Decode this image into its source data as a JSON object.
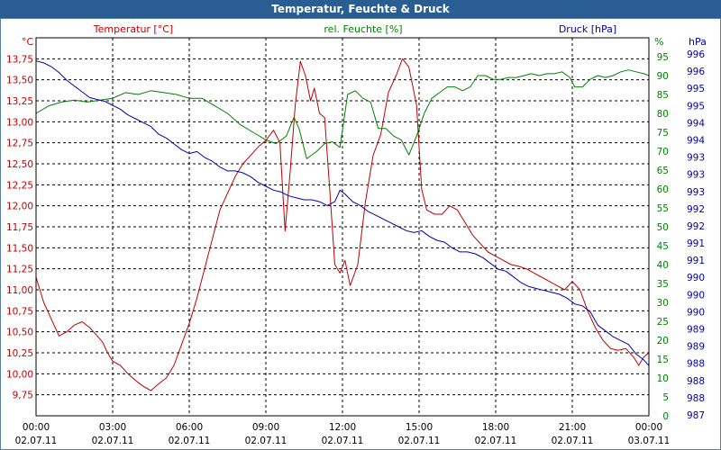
{
  "window": {
    "title": "Temperatur, Feuchte & Druck"
  },
  "chart_data": {
    "type": "line",
    "title": "Temperatur, Feuchte & Druck",
    "colors": {
      "temperature": "#c00000",
      "humidity": "#008000",
      "pressure": "#0000b0",
      "grid": "#000000"
    },
    "x_ticks": [
      {
        "time": "00:00",
        "date": "02.07.11"
      },
      {
        "time": "03:00",
        "date": "02.07.11"
      },
      {
        "time": "06:00",
        "date": "02.07.11"
      },
      {
        "time": "09:00",
        "date": "02.07.11"
      },
      {
        "time": "12:00",
        "date": "02.07.11"
      },
      {
        "time": "15:00",
        "date": "02.07.11"
      },
      {
        "time": "18:00",
        "date": "02.07.11"
      },
      {
        "time": "21:00",
        "date": "02.07.11"
      },
      {
        "time": "00:00",
        "date": "03.07.11"
      }
    ],
    "x_range_hours": [
      0,
      24
    ],
    "axes": {
      "temperature": {
        "unit": "°C",
        "label": "Temperatur [°C]",
        "ylim": [
          9.5,
          14.0
        ],
        "ticks": [
          "9,75",
          "10,00",
          "10,25",
          "10,50",
          "10,75",
          "11,00",
          "11,25",
          "11,50",
          "11,75",
          "12,00",
          "12,25",
          "12,50",
          "12,75",
          "13,00",
          "13,25",
          "13,50",
          "13,75"
        ]
      },
      "humidity": {
        "unit": "%",
        "label": "rel. Feuchte [%]",
        "ylim": [
          0,
          100
        ],
        "ticks": [
          "0",
          "5",
          "10",
          "15",
          "20",
          "25",
          "30",
          "35",
          "40",
          "45",
          "50",
          "55",
          "60",
          "65",
          "70",
          "75",
          "80",
          "85",
          "90",
          "95"
        ]
      },
      "pressure": {
        "unit": "hPa",
        "label": "Druck [hPa]",
        "ylim": [
          987,
          996.8
        ],
        "ticks": [
          "987",
          "988",
          "988",
          "988",
          "989",
          "989",
          "990",
          "990",
          "990",
          "991",
          "991",
          "992",
          "992",
          "993",
          "993",
          "993",
          "994",
          "994",
          "995",
          "995",
          "996",
          "996"
        ]
      }
    },
    "series": [
      {
        "name": "Temperatur",
        "axis": "temperature",
        "points": [
          [
            0,
            11.15
          ],
          [
            0.3,
            10.85
          ],
          [
            0.6,
            10.65
          ],
          [
            0.9,
            10.45
          ],
          [
            1.2,
            10.5
          ],
          [
            1.5,
            10.58
          ],
          [
            1.8,
            10.62
          ],
          [
            2.1,
            10.55
          ],
          [
            2.4,
            10.45
          ],
          [
            2.6,
            10.38
          ],
          [
            2.8,
            10.25
          ],
          [
            3.0,
            10.15
          ],
          [
            3.3,
            10.1
          ],
          [
            3.6,
            10.0
          ],
          [
            3.9,
            9.92
          ],
          [
            4.2,
            9.85
          ],
          [
            4.5,
            9.8
          ],
          [
            4.8,
            9.88
          ],
          [
            5.1,
            9.95
          ],
          [
            5.4,
            10.1
          ],
          [
            5.7,
            10.35
          ],
          [
            6.0,
            10.6
          ],
          [
            6.3,
            10.9
          ],
          [
            6.6,
            11.25
          ],
          [
            6.9,
            11.6
          ],
          [
            7.2,
            11.95
          ],
          [
            7.5,
            12.15
          ],
          [
            7.8,
            12.35
          ],
          [
            8.1,
            12.5
          ],
          [
            8.4,
            12.6
          ],
          [
            8.7,
            12.7
          ],
          [
            9.0,
            12.78
          ],
          [
            9.3,
            12.9
          ],
          [
            9.55,
            12.75
          ],
          [
            9.75,
            11.7
          ],
          [
            9.95,
            12.4
          ],
          [
            10.15,
            13.2
          ],
          [
            10.35,
            13.72
          ],
          [
            10.55,
            13.55
          ],
          [
            10.75,
            13.25
          ],
          [
            10.9,
            13.4
          ],
          [
            11.1,
            13.1
          ],
          [
            11.3,
            13.05
          ],
          [
            11.5,
            12.2
          ],
          [
            11.7,
            11.3
          ],
          [
            11.9,
            11.2
          ],
          [
            12.1,
            11.35
          ],
          [
            12.3,
            11.05
          ],
          [
            12.6,
            11.3
          ],
          [
            12.9,
            12.05
          ],
          [
            13.2,
            12.6
          ],
          [
            13.5,
            12.85
          ],
          [
            13.8,
            13.35
          ],
          [
            14.1,
            13.55
          ],
          [
            14.35,
            13.75
          ],
          [
            14.6,
            13.65
          ],
          [
            14.9,
            13.2
          ],
          [
            15.1,
            12.2
          ],
          [
            15.3,
            11.95
          ],
          [
            15.6,
            11.9
          ],
          [
            15.9,
            11.9
          ],
          [
            16.2,
            12.0
          ],
          [
            16.5,
            11.95
          ],
          [
            16.8,
            11.8
          ],
          [
            17.1,
            11.65
          ],
          [
            17.4,
            11.55
          ],
          [
            17.7,
            11.45
          ],
          [
            18.0,
            11.4
          ],
          [
            18.3,
            11.35
          ],
          [
            18.6,
            11.3
          ],
          [
            18.9,
            11.28
          ],
          [
            19.2,
            11.25
          ],
          [
            19.5,
            11.2
          ],
          [
            19.8,
            11.15
          ],
          [
            20.1,
            11.1
          ],
          [
            20.4,
            11.05
          ],
          [
            20.7,
            11.0
          ],
          [
            21.0,
            11.1
          ],
          [
            21.3,
            11.0
          ],
          [
            21.6,
            10.75
          ],
          [
            21.9,
            10.55
          ],
          [
            22.2,
            10.4
          ],
          [
            22.5,
            10.3
          ],
          [
            22.8,
            10.28
          ],
          [
            23.1,
            10.3
          ],
          [
            23.4,
            10.2
          ],
          [
            23.6,
            10.1
          ],
          [
            23.8,
            10.2
          ],
          [
            24.0,
            10.25
          ]
        ]
      },
      {
        "name": "rel. Feuchte",
        "axis": "humidity",
        "points": [
          [
            0,
            80
          ],
          [
            0.5,
            82
          ],
          [
            1,
            83
          ],
          [
            1.5,
            83.5
          ],
          [
            2,
            83
          ],
          [
            2.5,
            83.5
          ],
          [
            3,
            84
          ],
          [
            3.5,
            85.5
          ],
          [
            4,
            85
          ],
          [
            4.5,
            86
          ],
          [
            5,
            85.5
          ],
          [
            5.5,
            85
          ],
          [
            6,
            84
          ],
          [
            6.5,
            84
          ],
          [
            7,
            82
          ],
          [
            7.5,
            80
          ],
          [
            8,
            77
          ],
          [
            8.5,
            75
          ],
          [
            9,
            73
          ],
          [
            9.4,
            72
          ],
          [
            9.8,
            74
          ],
          [
            10.1,
            79
          ],
          [
            10.3,
            76
          ],
          [
            10.6,
            68
          ],
          [
            11,
            70
          ],
          [
            11.3,
            72
          ],
          [
            11.6,
            72.5
          ],
          [
            11.9,
            71
          ],
          [
            12.2,
            85
          ],
          [
            12.5,
            86
          ],
          [
            12.8,
            84
          ],
          [
            13.1,
            83
          ],
          [
            13.4,
            76
          ],
          [
            13.7,
            76
          ],
          [
            14,
            74
          ],
          [
            14.3,
            73
          ],
          [
            14.6,
            69
          ],
          [
            14.9,
            74
          ],
          [
            15.2,
            80
          ],
          [
            15.5,
            84
          ],
          [
            15.8,
            85.5
          ],
          [
            16.1,
            87
          ],
          [
            16.4,
            87
          ],
          [
            16.7,
            86
          ],
          [
            17,
            87
          ],
          [
            17.3,
            90
          ],
          [
            17.6,
            90
          ],
          [
            17.9,
            89
          ],
          [
            18.2,
            89
          ],
          [
            18.5,
            89.5
          ],
          [
            18.8,
            89.5
          ],
          [
            19.1,
            90
          ],
          [
            19.4,
            90.5
          ],
          [
            19.7,
            90
          ],
          [
            20,
            90.5
          ],
          [
            20.3,
            90.5
          ],
          [
            20.6,
            91
          ],
          [
            20.9,
            89.5
          ],
          [
            21.1,
            87
          ],
          [
            21.4,
            87
          ],
          [
            21.7,
            89
          ],
          [
            22,
            90
          ],
          [
            22.3,
            89.5
          ],
          [
            22.6,
            90
          ],
          [
            22.9,
            91
          ],
          [
            23.2,
            91.5
          ],
          [
            23.5,
            91
          ],
          [
            23.8,
            90.5
          ],
          [
            24,
            90
          ]
        ]
      },
      {
        "name": "Druck",
        "axis": "pressure",
        "points": [
          [
            0,
            996.2
          ],
          [
            0.3,
            996.15
          ],
          [
            0.6,
            996.05
          ],
          [
            0.9,
            995.9
          ],
          [
            1.2,
            995.7
          ],
          [
            1.5,
            995.55
          ],
          [
            1.8,
            995.4
          ],
          [
            2.1,
            995.25
          ],
          [
            2.4,
            995.2
          ],
          [
            2.7,
            995.15
          ],
          [
            3.0,
            995.05
          ],
          [
            3.3,
            994.95
          ],
          [
            3.6,
            994.8
          ],
          [
            3.9,
            994.7
          ],
          [
            4.2,
            994.6
          ],
          [
            4.5,
            994.5
          ],
          [
            4.8,
            994.3
          ],
          [
            5.1,
            994.2
          ],
          [
            5.4,
            994.05
          ],
          [
            5.7,
            993.9
          ],
          [
            6.0,
            993.8
          ],
          [
            6.3,
            993.85
          ],
          [
            6.6,
            993.7
          ],
          [
            6.9,
            993.6
          ],
          [
            7.2,
            993.45
          ],
          [
            7.5,
            993.35
          ],
          [
            7.8,
            993.35
          ],
          [
            8.1,
            993.3
          ],
          [
            8.4,
            993.2
          ],
          [
            8.7,
            993.05
          ],
          [
            9.0,
            992.95
          ],
          [
            9.3,
            992.85
          ],
          [
            9.6,
            992.8
          ],
          [
            9.9,
            992.7
          ],
          [
            10.2,
            992.65
          ],
          [
            10.5,
            992.6
          ],
          [
            10.8,
            992.6
          ],
          [
            11.1,
            992.55
          ],
          [
            11.4,
            992.45
          ],
          [
            11.7,
            992.55
          ],
          [
            11.9,
            992.85
          ],
          [
            12.1,
            992.75
          ],
          [
            12.4,
            992.55
          ],
          [
            12.7,
            992.45
          ],
          [
            13.0,
            992.3
          ],
          [
            13.3,
            992.2
          ],
          [
            13.6,
            992.1
          ],
          [
            13.9,
            992.0
          ],
          [
            14.2,
            991.9
          ],
          [
            14.5,
            991.8
          ],
          [
            14.8,
            991.75
          ],
          [
            15.1,
            991.8
          ],
          [
            15.4,
            991.65
          ],
          [
            15.7,
            991.55
          ],
          [
            16.0,
            991.5
          ],
          [
            16.3,
            991.35
          ],
          [
            16.6,
            991.25
          ],
          [
            16.9,
            991.25
          ],
          [
            17.2,
            991.2
          ],
          [
            17.5,
            991.1
          ],
          [
            17.8,
            990.95
          ],
          [
            18.1,
            990.8
          ],
          [
            18.4,
            990.75
          ],
          [
            18.7,
            990.6
          ],
          [
            19.0,
            990.45
          ],
          [
            19.3,
            990.35
          ],
          [
            19.6,
            990.3
          ],
          [
            19.9,
            990.25
          ],
          [
            20.2,
            990.2
          ],
          [
            20.5,
            990.15
          ],
          [
            20.8,
            990.05
          ],
          [
            21.1,
            989.9
          ],
          [
            21.4,
            989.85
          ],
          [
            21.7,
            989.7
          ],
          [
            22.0,
            989.35
          ],
          [
            22.3,
            989.2
          ],
          [
            22.6,
            989.05
          ],
          [
            22.9,
            988.95
          ],
          [
            23.2,
            988.85
          ],
          [
            23.5,
            988.6
          ],
          [
            23.8,
            988.45
          ],
          [
            24.0,
            988.3
          ]
        ]
      }
    ]
  }
}
